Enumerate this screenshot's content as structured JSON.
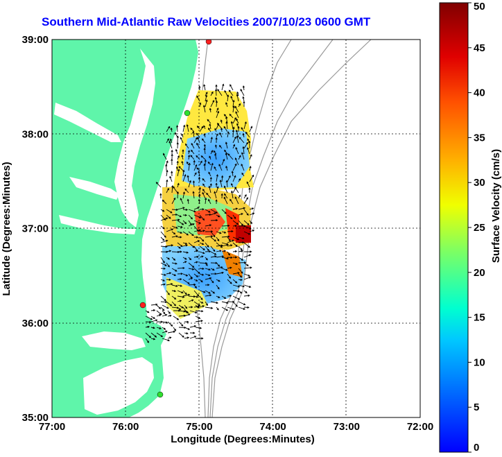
{
  "title": "Southern Mid-Atlantic Raw Velocities 2007/10/23 0600 GMT",
  "x_axis": {
    "label": "Longitude (Degrees:Minutes)",
    "ticks": [
      "77:00",
      "76:00",
      "75:00",
      "74:00",
      "73:00",
      "72:00"
    ]
  },
  "y_axis": {
    "label": "Latitude (Degrees:Minutes)",
    "ticks": [
      "39:00",
      "38:00",
      "37:00",
      "36:00",
      "35:00"
    ]
  },
  "colorbar": {
    "label": "Surface Velocity (cm/s)",
    "ticks": [
      "50",
      "45",
      "40",
      "35",
      "30",
      "25",
      "20",
      "15",
      "10",
      "5",
      "0"
    ],
    "range": [
      0,
      50
    ]
  },
  "colors": {
    "land": "#5ff5aa",
    "water": "#ffffff",
    "title": "#0000ff",
    "bathymetry": "#999999",
    "station_red": "#ff2020",
    "station_green": "#30e030"
  },
  "stations": [
    {
      "color": "red"
    },
    {
      "color": "green"
    },
    {
      "color": "red"
    },
    {
      "color": "green"
    }
  ]
}
